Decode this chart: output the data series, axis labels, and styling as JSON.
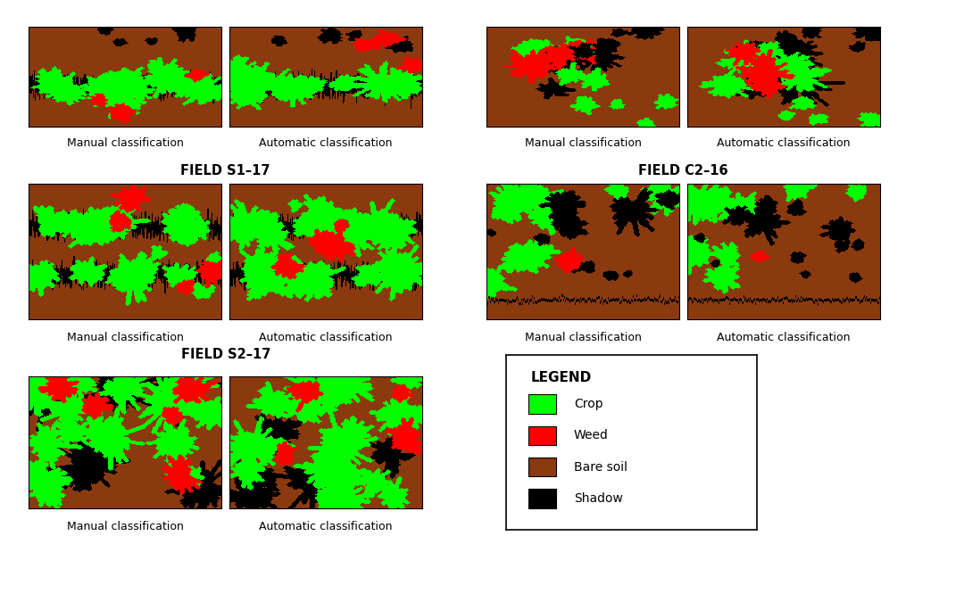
{
  "background_color": "#ffffff",
  "title_fontsize": 10.5,
  "label_fontsize": 9,
  "colors": {
    "crop": "#00ff00",
    "weed": "#ff0000",
    "bare_soil": "#8B3A10",
    "shadow": "#000000"
  },
  "legend_items": [
    "Crop",
    "Weed",
    "Bare soil",
    "Shadow"
  ],
  "legend_colors": [
    "#00ff00",
    "#ff0000",
    "#8B3A10",
    "#000000"
  ],
  "sublabels": [
    "Manual classification",
    "Automatic classification"
  ],
  "field_titles": [
    "FIELD S1–17",
    "FIELD C2–16",
    "FIELD S2–17"
  ]
}
